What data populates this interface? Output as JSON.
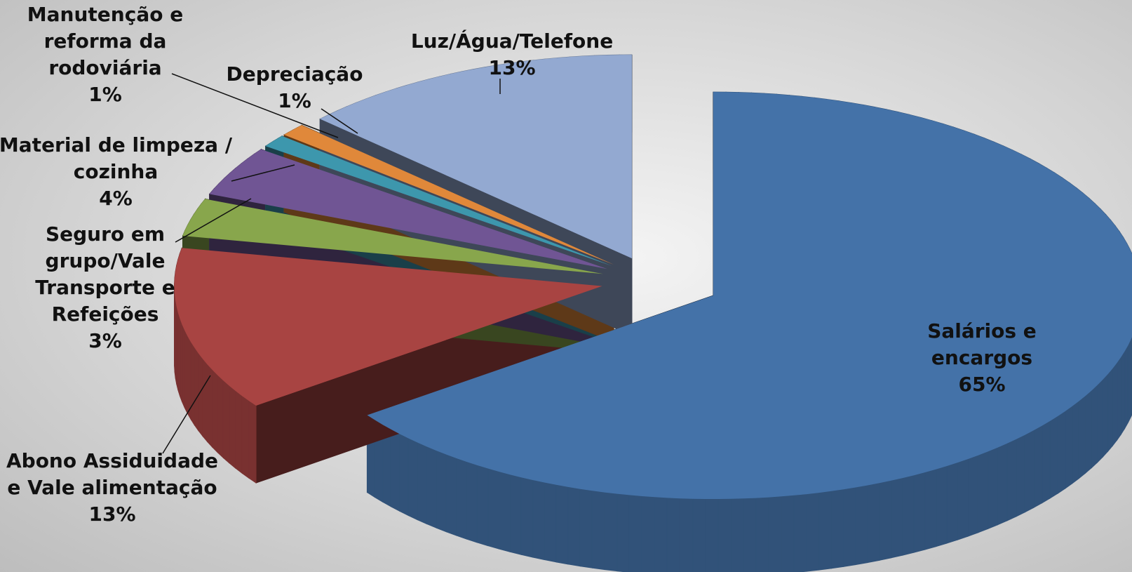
{
  "chart_data": {
    "type": "pie",
    "categories": [
      "Salários e encargos",
      "Abono Assiduidade e Vale alimentação",
      "Seguro em grupo/Vale Transporte e Refeições",
      "Material de limpeza / cozinha",
      "Manutenção e reforma da rodoviária",
      "Depreciação",
      "Luz/Água/Telefone"
    ],
    "values": [
      65,
      13,
      3,
      4,
      1,
      1,
      13
    ],
    "value_labels": [
      "65%",
      "13%",
      "3%",
      "4%",
      "1%",
      "1%",
      "13%"
    ],
    "colors": [
      "#4472a8",
      "#a84442",
      "#88a64c",
      "#705594",
      "#3d97ad",
      "#e0883a",
      "#93a9d1"
    ]
  }
}
